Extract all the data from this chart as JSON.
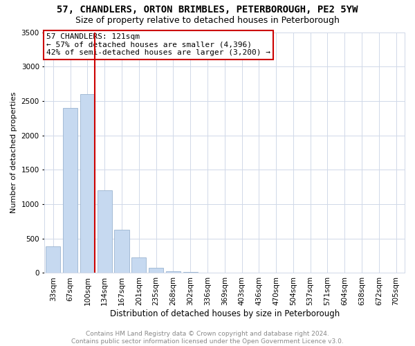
{
  "title": "57, CHANDLERS, ORTON BRIMBLES, PETERBOROUGH, PE2 5YW",
  "subtitle": "Size of property relative to detached houses in Peterborough",
  "xlabel": "Distribution of detached houses by size in Peterborough",
  "ylabel": "Number of detached properties",
  "footer_line1": "Contains HM Land Registry data © Crown copyright and database right 2024.",
  "footer_line2": "Contains public sector information licensed under the Open Government Licence v3.0.",
  "annotation_line1": "57 CHANDLERS: 121sqm",
  "annotation_line2": "← 57% of detached houses are smaller (4,396)",
  "annotation_line3": "42% of semi-detached houses are larger (3,200) →",
  "categories": [
    "33sqm",
    "67sqm",
    "100sqm",
    "134sqm",
    "167sqm",
    "201sqm",
    "235sqm",
    "268sqm",
    "302sqm",
    "336sqm",
    "369sqm",
    "403sqm",
    "436sqm",
    "470sqm",
    "504sqm",
    "537sqm",
    "571sqm",
    "604sqm",
    "638sqm",
    "672sqm",
    "705sqm"
  ],
  "values": [
    390,
    2400,
    2600,
    1200,
    630,
    230,
    80,
    25,
    12,
    6,
    3,
    2,
    1,
    1,
    0,
    0,
    0,
    0,
    0,
    0,
    0
  ],
  "bar_color": "#c6d9f0",
  "bar_edge_color": "#9ab4d0",
  "vline_color": "#cc0000",
  "annotation_box_edge_color": "#cc0000",
  "annotation_box_face_color": "#ffffff",
  "ylim": [
    0,
    3500
  ],
  "yticks": [
    0,
    500,
    1000,
    1500,
    2000,
    2500,
    3000,
    3500
  ],
  "grid_color": "#d0d8e8",
  "title_fontsize": 10,
  "subtitle_fontsize": 9,
  "xlabel_fontsize": 8.5,
  "ylabel_fontsize": 8,
  "tick_fontsize": 7.5,
  "annotation_fontsize": 8,
  "footer_fontsize": 6.5,
  "background_color": "#ffffff"
}
